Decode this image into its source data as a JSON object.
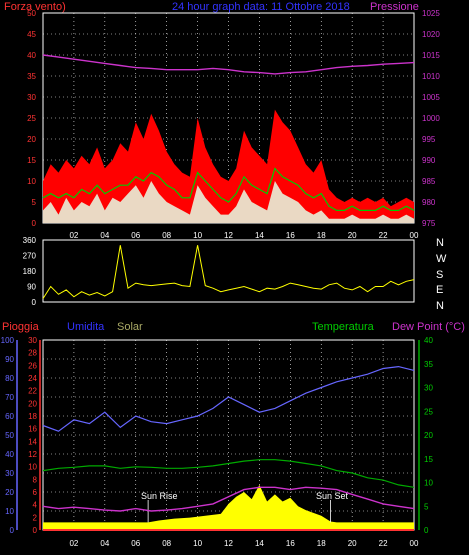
{
  "header": {
    "left_label": "Forza vento)",
    "title": "24 hour graph data: 11 Ottobre 2018",
    "right_label": "Pressione"
  },
  "bottom_header": {
    "rain": "Pioggia",
    "humidity": "Umidita",
    "solar": "Solar",
    "temperature": "Temperatura",
    "dewpoint": "Dew Point (°C)"
  },
  "annotations": {
    "sunrise": "Sun Rise",
    "sunset": "Sun Set"
  },
  "colors": {
    "wind_gust": "#ff0000",
    "wind_avg": "#00cc00",
    "wind_speed": "#e6ffe6",
    "pressure": "#cc33cc",
    "direction": "#ffff00",
    "humidity": "#6666ff",
    "temperature": "#00aa00",
    "dewpoint": "#cc33cc",
    "rain": "#ff3333",
    "solar": "#ffff00",
    "text_red": "#ff3333",
    "text_blue": "#3333ff",
    "text_green": "#00cc00",
    "text_magenta": "#cc33cc",
    "text_tan": "#aaaa66",
    "grid": "#ffffff"
  },
  "chart_data": [
    {
      "type": "line",
      "name": "wind-pressure",
      "x_ticks": [
        "02",
        "04",
        "06",
        "08",
        "10",
        "12",
        "14",
        "16",
        "18",
        "20",
        "22",
        "00"
      ],
      "left_ticks": [
        "0",
        "5",
        "10",
        "15",
        "20",
        "25",
        "30",
        "35",
        "40",
        "45",
        "50"
      ],
      "right_ticks": [
        "975",
        "980",
        "985",
        "990",
        "995",
        "1000",
        "1005",
        "1010",
        "1015",
        "1020",
        "1025"
      ],
      "ylim_left": [
        0,
        50
      ],
      "ylim_right": [
        975,
        1025
      ],
      "xlim": [
        0,
        24
      ],
      "series": [
        {
          "key": "pressure",
          "axis": "right",
          "x": [
            0,
            1,
            2,
            3,
            4,
            5,
            6,
            7,
            8,
            9,
            10,
            11,
            12,
            13,
            14,
            15,
            16,
            17,
            18,
            19,
            20,
            21,
            22,
            23,
            24
          ],
          "values": [
            1015,
            1014.5,
            1014,
            1013.5,
            1013,
            1012.5,
            1012,
            1011.8,
            1011.5,
            1011.5,
            1011.5,
            1011.8,
            1011.5,
            1011,
            1010.8,
            1010.5,
            1010.8,
            1011,
            1011.5,
            1012,
            1012.3,
            1012.5,
            1012.8,
            1013,
            1013.2
          ]
        },
        {
          "key": "gust",
          "axis": "left",
          "x": [
            0,
            0.5,
            1,
            1.5,
            2,
            2.5,
            3,
            3.5,
            4,
            4.5,
            5,
            5.5,
            6,
            6.5,
            7,
            7.5,
            8,
            8.5,
            9,
            9.5,
            10,
            10.5,
            11,
            11.5,
            12,
            12.5,
            13,
            13.5,
            14,
            14.5,
            15,
            15.5,
            16,
            16.5,
            17,
            17.5,
            18,
            18.5,
            19,
            19.5,
            20,
            20.5,
            21,
            21.5,
            22,
            22.5,
            23,
            23.5,
            24
          ],
          "values": [
            10,
            14,
            12,
            15,
            13,
            16,
            14,
            18,
            13,
            15,
            19,
            17,
            24,
            20,
            26,
            22,
            17,
            14,
            12,
            11,
            25,
            18,
            14,
            11,
            10,
            13,
            22,
            18,
            16,
            14,
            27,
            24,
            22,
            18,
            14,
            12,
            15,
            8,
            6,
            5,
            6,
            5,
            6,
            5,
            6,
            4,
            5,
            6,
            5
          ]
        },
        {
          "key": "avg",
          "axis": "left",
          "x": [
            0,
            0.5,
            1,
            1.5,
            2,
            2.5,
            3,
            3.5,
            4,
            4.5,
            5,
            5.5,
            6,
            6.5,
            7,
            7.5,
            8,
            8.5,
            9,
            9.5,
            10,
            10.5,
            11,
            11.5,
            12,
            12.5,
            13,
            13.5,
            14,
            14.5,
            15,
            15.5,
            16,
            16.5,
            17,
            17.5,
            18,
            18.5,
            19,
            19.5,
            20,
            20.5,
            21,
            21.5,
            22,
            22.5,
            23,
            23.5,
            24
          ],
          "values": [
            6,
            7,
            6,
            7,
            6,
            8,
            7,
            9,
            7,
            8,
            9,
            9,
            11,
            10,
            12,
            11,
            9,
            8,
            6,
            6,
            12,
            10,
            8,
            6,
            5,
            7,
            11,
            9,
            8,
            7,
            13,
            11,
            10,
            9,
            7,
            6,
            7,
            4,
            3,
            3,
            4,
            3,
            3,
            3,
            4,
            3,
            3,
            4,
            3
          ]
        },
        {
          "key": "speed",
          "axis": "left",
          "x": [
            0,
            0.5,
            1,
            1.5,
            2,
            2.5,
            3,
            3.5,
            4,
            4.5,
            5,
            5.5,
            6,
            6.5,
            7,
            7.5,
            8,
            8.5,
            9,
            9.5,
            10,
            10.5,
            11,
            11.5,
            12,
            12.5,
            13,
            13.5,
            14,
            14.5,
            15,
            15.5,
            16,
            16.5,
            17,
            17.5,
            18,
            18.5,
            19,
            19.5,
            20,
            20.5,
            21,
            21.5,
            22,
            22.5,
            23,
            23.5,
            24
          ],
          "values": [
            3,
            5,
            2,
            6,
            3,
            5,
            4,
            7,
            3,
            6,
            5,
            7,
            9,
            6,
            10,
            7,
            5,
            4,
            3,
            2,
            9,
            6,
            4,
            2,
            2,
            4,
            8,
            5,
            4,
            3,
            10,
            7,
            6,
            5,
            3,
            2,
            3,
            1,
            1,
            1,
            2,
            1,
            1,
            1,
            2,
            1,
            1,
            2,
            1
          ]
        }
      ]
    },
    {
      "type": "line",
      "name": "wind-direction",
      "left_ticks": [
        "0",
        "90",
        "180",
        "270",
        "360"
      ],
      "right_ticks": [
        "N",
        "E",
        "S",
        "W",
        "N"
      ],
      "ylim": [
        0,
        360
      ],
      "xlim": [
        0,
        24
      ],
      "series": [
        {
          "key": "direction",
          "x": [
            0,
            0.5,
            1,
            1.5,
            2,
            2.5,
            3,
            3.5,
            4,
            4.5,
            5,
            5.5,
            6,
            6.5,
            7,
            7.5,
            8,
            8.5,
            9,
            9.5,
            10,
            10.5,
            11,
            11.5,
            12,
            12.5,
            13,
            13.5,
            14,
            14.5,
            15,
            15.5,
            16,
            16.5,
            17,
            17.5,
            18,
            18.5,
            19,
            19.5,
            20,
            20.5,
            21,
            21.5,
            22,
            22.5,
            23,
            23.5,
            24
          ],
          "values": [
            20,
            90,
            45,
            70,
            30,
            60,
            40,
            55,
            35,
            60,
            330,
            80,
            110,
            100,
            95,
            100,
            105,
            110,
            95,
            90,
            330,
            95,
            80,
            60,
            70,
            80,
            90,
            75,
            60,
            80,
            75,
            90,
            110,
            100,
            90,
            80,
            75,
            100,
            110,
            80,
            70,
            90,
            60,
            90,
            90,
            120,
            100,
            120,
            130
          ]
        }
      ]
    },
    {
      "type": "line",
      "name": "rain-humidity-temperature",
      "x_ticks": [
        "02",
        "04",
        "06",
        "08",
        "10",
        "12",
        "14",
        "16",
        "18",
        "20",
        "22",
        "00"
      ],
      "rain_ticks": [
        "0",
        "2",
        "4",
        "6",
        "8",
        "10",
        "12",
        "14",
        "16",
        "18",
        "20",
        "22",
        "24",
        "26",
        "28",
        "30"
      ],
      "humidity_ticks": [
        "0",
        "10",
        "20",
        "30",
        "40",
        "50",
        "60",
        "70",
        "80",
        "90",
        "100"
      ],
      "temp_ticks": [
        "0",
        "5",
        "10",
        "15",
        "20",
        "25",
        "30",
        "35",
        "40"
      ],
      "ylim_humidity": [
        0,
        100
      ],
      "ylim_temp": [
        0,
        40
      ],
      "ylim_rain": [
        0,
        30
      ],
      "xlim": [
        0,
        24
      ],
      "series": [
        {
          "key": "humidity",
          "axis": "humidity",
          "x": [
            0,
            1,
            2,
            3,
            4,
            5,
            6,
            7,
            8,
            9,
            10,
            11,
            12,
            13,
            14,
            15,
            16,
            17,
            18,
            19,
            20,
            21,
            22,
            23,
            24
          ],
          "values": [
            55,
            52,
            58,
            56,
            62,
            54,
            60,
            57,
            56,
            58,
            60,
            64,
            70,
            66,
            62,
            64,
            68,
            72,
            75,
            78,
            80,
            82,
            85,
            86,
            84
          ]
        },
        {
          "key": "temperature",
          "axis": "temp",
          "x": [
            0,
            1,
            2,
            3,
            4,
            5,
            6,
            7,
            8,
            9,
            10,
            11,
            12,
            13,
            14,
            15,
            16,
            17,
            18,
            19,
            20,
            21,
            22,
            23,
            24
          ],
          "values": [
            12.5,
            13,
            13.2,
            13.5,
            13.5,
            13,
            13.3,
            13.2,
            13,
            13,
            13.2,
            13.5,
            14,
            14.5,
            14.8,
            14.8,
            14.5,
            14,
            13.5,
            12.5,
            12,
            11,
            10.5,
            9.5,
            9
          ]
        },
        {
          "key": "dewpoint",
          "axis": "temp",
          "x": [
            0,
            1,
            2,
            3,
            4,
            5,
            6,
            7,
            8,
            9,
            10,
            11,
            12,
            13,
            14,
            15,
            16,
            17,
            18,
            19,
            20,
            21,
            22,
            23,
            24
          ],
          "values": [
            5,
            4.5,
            4.8,
            4.5,
            4.2,
            4,
            4.5,
            4,
            4.2,
            4.5,
            5,
            5.5,
            7,
            8.5,
            9,
            9,
            8.5,
            9,
            8.8,
            8.5,
            7.5,
            6.5,
            5.5,
            5,
            4.5
          ]
        },
        {
          "key": "solar",
          "axis": "temp",
          "x": [
            0,
            6.8,
            7.5,
            8.5,
            9.5,
            10.5,
            11.5,
            12,
            12.5,
            13,
            13.5,
            14,
            14.5,
            15,
            15.5,
            16,
            16.5,
            17,
            18,
            18.6,
            19,
            24
          ],
          "values": [
            1.6,
            1.6,
            2,
            2.4,
            2.6,
            3,
            3.4,
            5.5,
            7,
            8,
            6.5,
            9.5,
            6,
            7.5,
            6,
            6.8,
            5,
            4.2,
            3,
            1.8,
            1.6,
            1.6
          ]
        },
        {
          "key": "rain",
          "axis": "rain",
          "x": [
            0,
            24
          ],
          "values": [
            0,
            0
          ]
        }
      ]
    }
  ]
}
